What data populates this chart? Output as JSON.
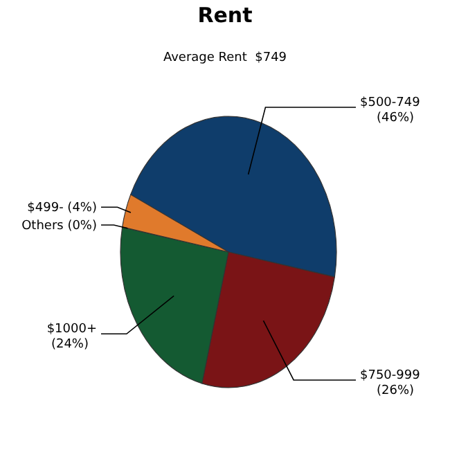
{
  "chart_data": {
    "type": "pie",
    "title": "Rent",
    "subtitle": "Average Rent  $749",
    "categories": [
      "$500-749",
      "$750-999",
      "$1000+",
      "Others",
      "$499-"
    ],
    "values": [
      46,
      26,
      24,
      0,
      4
    ],
    "value_labels": [
      "(46%)",
      "(26%)",
      "(24%)",
      "(0%)",
      "(4%)"
    ],
    "colors": [
      "#0f3d6b",
      "#7a1416",
      "#145a32",
      "#8a8a8a",
      "#e07a2c"
    ]
  }
}
